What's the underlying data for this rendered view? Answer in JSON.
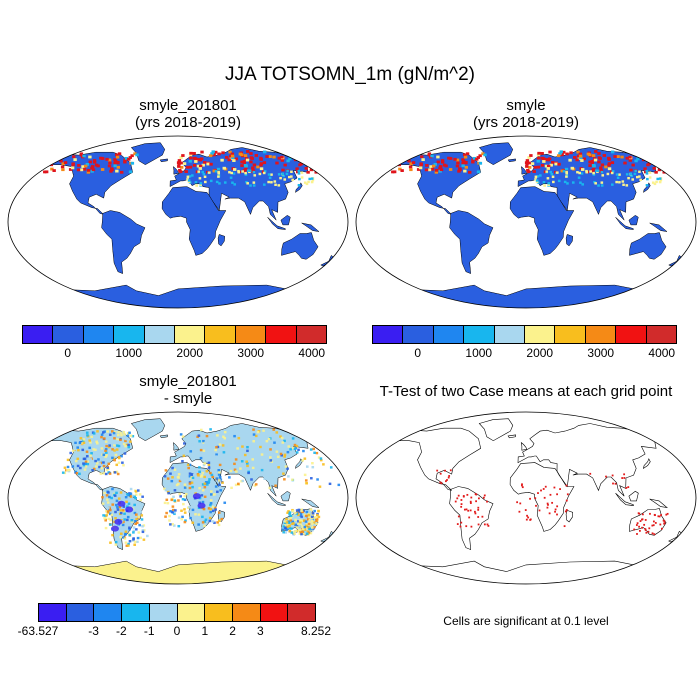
{
  "title": "JJA TOTSOMN_1m (gN/m^2)",
  "panels": [
    {
      "title_line1": "smyle_201801",
      "title_line2": "(yrs 2018-2019)"
    },
    {
      "title_line1": "smyle",
      "title_line2": "(yrs 2018-2019)"
    },
    {
      "title_line1": "smyle_201801",
      "title_line2": "- smyle"
    },
    {
      "title_line1": "T-Test of two Case means at each grid point",
      "title_line2": ""
    }
  ],
  "colorbar_top": {
    "colors": [
      "#3a1ef2",
      "#2a5fe0",
      "#1f86f0",
      "#18b6ee",
      "#a9d7ef",
      "#fbf28d",
      "#f8be1e",
      "#f58a16",
      "#f11212",
      "#d12b2b"
    ],
    "labels": [
      "0",
      "1000",
      "2000",
      "3000",
      "4000"
    ]
  },
  "colorbar_diff": {
    "colors": [
      "#3a1ef2",
      "#2a5fe0",
      "#1f86f0",
      "#18b6ee",
      "#a9d7ef",
      "#fbf28d",
      "#f8be1e",
      "#f58a16",
      "#f11212",
      "#d12b2b"
    ],
    "labels": [
      "-63.527",
      "-3",
      "-2",
      "-1",
      "0",
      "1",
      "2",
      "3",
      "8.252"
    ]
  },
  "ttest_note": "Cells are significant at 0.1 level",
  "colors": {
    "land_base": "#2a5fe0",
    "high": "#e0141c",
    "diff_base": "#a9d7ef",
    "significant": "#e21b1b"
  }
}
